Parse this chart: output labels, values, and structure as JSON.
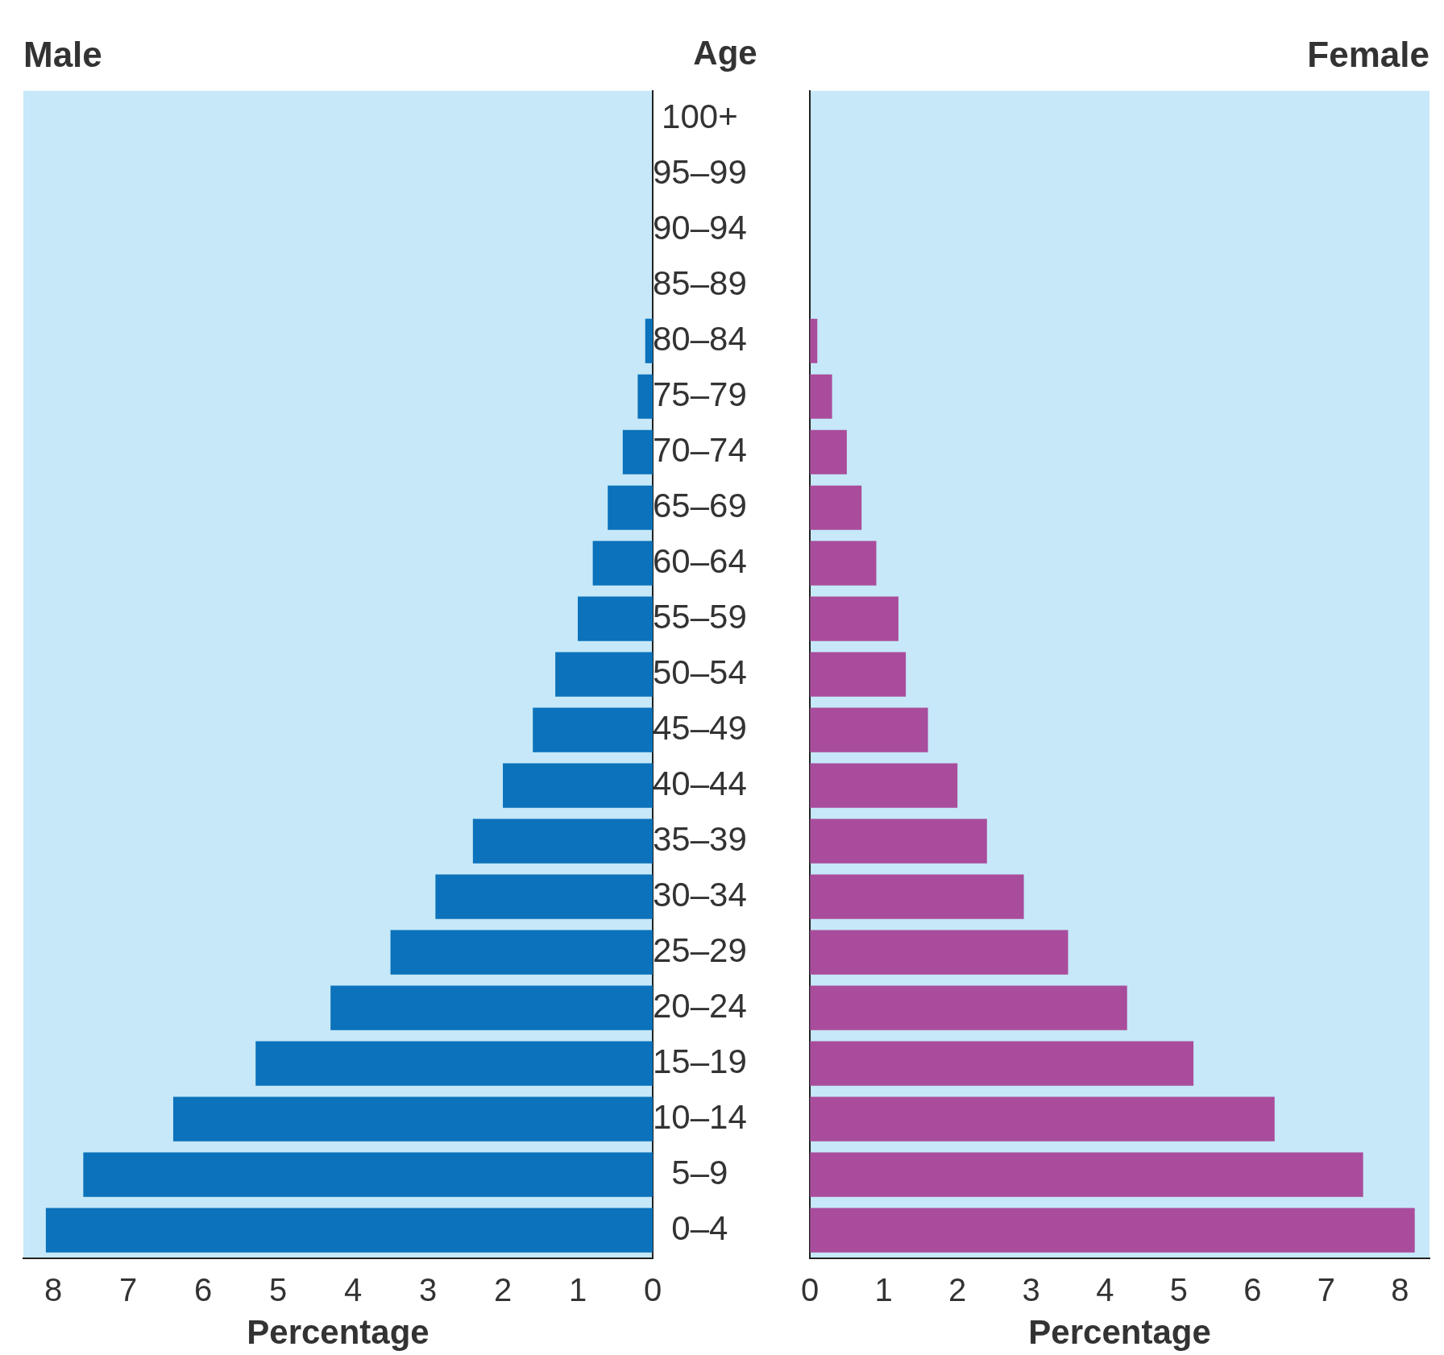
{
  "chart_data": [
    {
      "type": "bar",
      "orientation": "horizontal",
      "title": "Male",
      "xlabel": "Percentage",
      "ylabel": "Age",
      "categories": [
        "100+",
        "95–99",
        "90–94",
        "85–89",
        "80–84",
        "75–79",
        "70–74",
        "65–69",
        "60–64",
        "55–59",
        "50–54",
        "45–49",
        "40–44",
        "35–39",
        "30–34",
        "25–29",
        "20–24",
        "15–19",
        "10–14",
        "5–9",
        "0–4"
      ],
      "values": [
        0,
        0,
        0,
        0,
        0.1,
        0.2,
        0.4,
        0.6,
        0.8,
        1.0,
        1.3,
        1.6,
        2.0,
        2.4,
        2.9,
        3.5,
        4.3,
        5.3,
        6.4,
        7.6,
        8.1
      ],
      "color": "#0b72bb",
      "xlim": [
        8.4,
        0
      ],
      "xticks": [
        8,
        7,
        6,
        5,
        4,
        3,
        2,
        1,
        0
      ]
    },
    {
      "type": "bar",
      "orientation": "horizontal",
      "title": "Female",
      "xlabel": "Percentage",
      "categories": [
        null,
        null,
        null,
        null,
        null,
        null,
        null,
        null,
        null,
        null,
        null,
        null,
        null,
        null,
        null,
        null,
        null,
        null,
        null,
        null,
        null
      ],
      "values": [
        0,
        0,
        0,
        0,
        0.1,
        0.3,
        0.5,
        0.7,
        0.9,
        1.2,
        1.3,
        1.6,
        2.0,
        2.4,
        2.9,
        3.5,
        4.3,
        5.2,
        6.3,
        7.5,
        8.2
      ],
      "color": "#a94c9b",
      "xlim": [
        0,
        8.4
      ],
      "xticks": [
        0,
        1,
        2,
        3,
        4,
        5,
        6,
        7,
        8
      ]
    }
  ]
}
